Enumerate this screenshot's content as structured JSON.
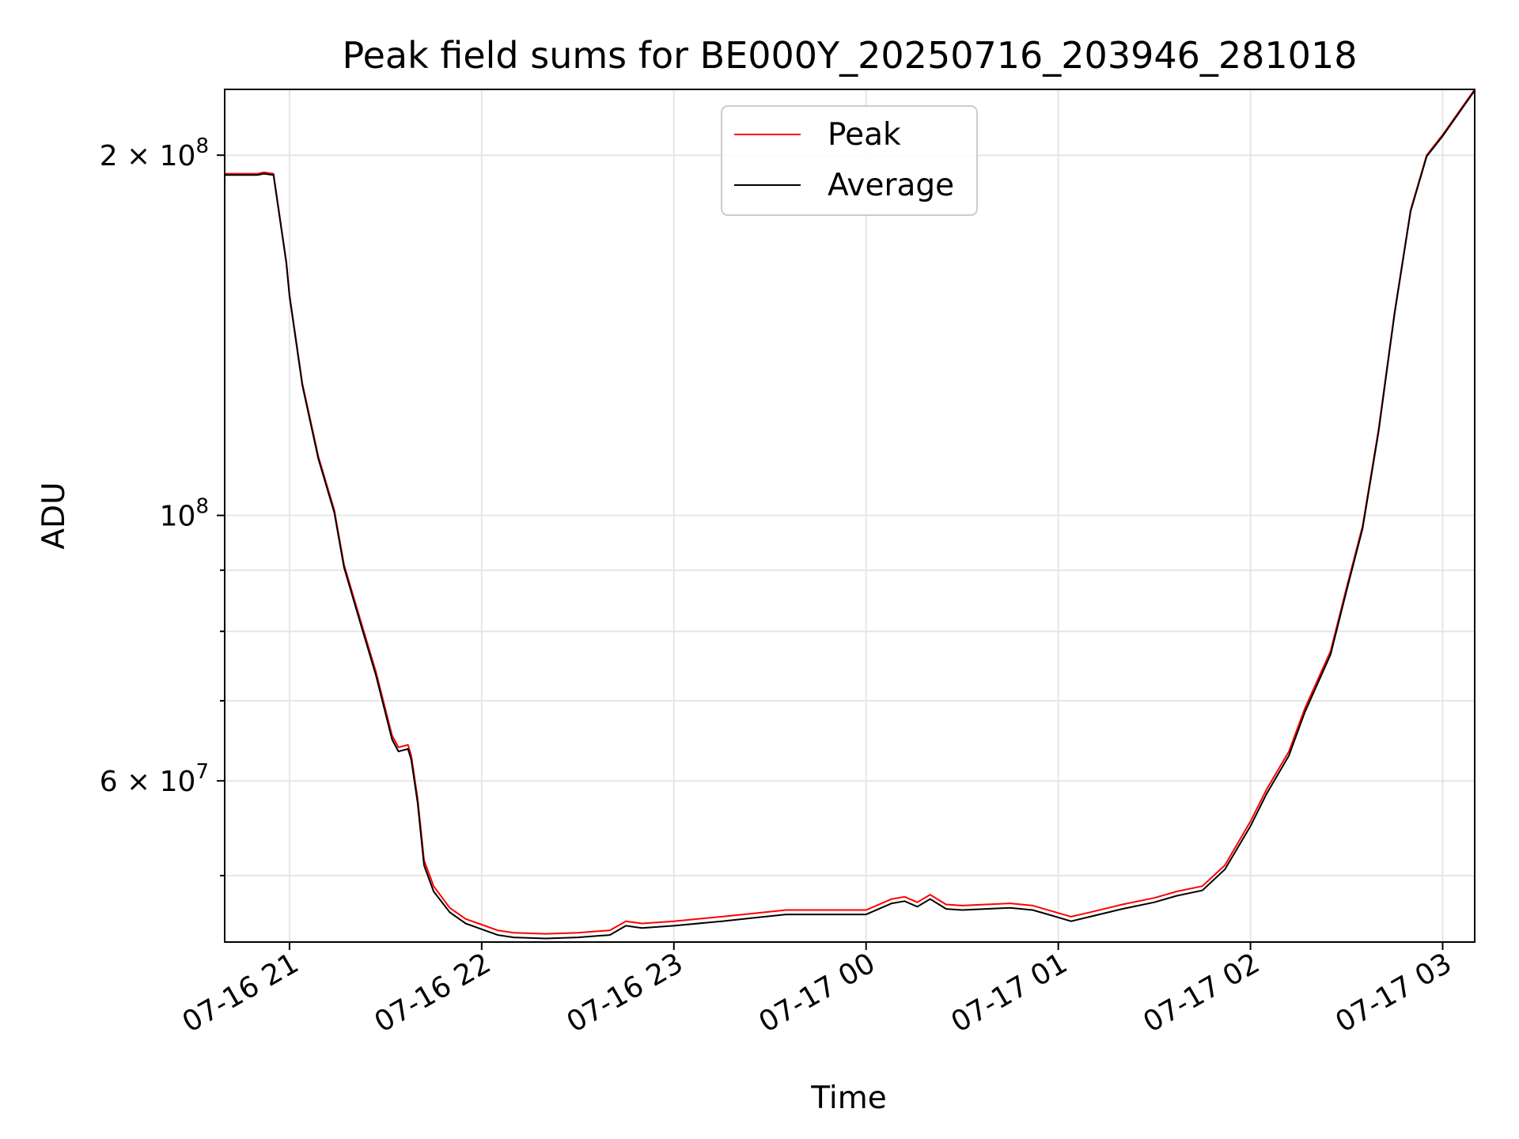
{
  "chart_data": {
    "type": "line",
    "title": "Peak field sums for BE000Y_20250716_203946_281018",
    "xlabel": "Time",
    "ylabel": "ADU",
    "y_scale": "log",
    "ylim": [
      44000000,
      227000000
    ],
    "xlim": [
      "2025-07-16 20:39:46",
      "2025-07-17 03:10:00"
    ],
    "grid": true,
    "legend_position": "top-center",
    "x_ticks": [
      {
        "t": "2025-07-16 21:00",
        "label": "07-16 21"
      },
      {
        "t": "2025-07-16 22:00",
        "label": "07-16 22"
      },
      {
        "t": "2025-07-16 23:00",
        "label": "07-16 23"
      },
      {
        "t": "2025-07-17 00:00",
        "label": "07-17 00"
      },
      {
        "t": "2025-07-17 01:00",
        "label": "07-17 01"
      },
      {
        "t": "2025-07-17 02:00",
        "label": "07-17 02"
      },
      {
        "t": "2025-07-17 03:00",
        "label": "07-17 03"
      }
    ],
    "y_ticks_major": [
      {
        "v": 200000000,
        "base": "2 × 10",
        "exp": "8"
      },
      {
        "v": 100000000,
        "base": "10",
        "exp": "8"
      },
      {
        "v": 60000000,
        "base": "6 × 10",
        "exp": "7"
      }
    ],
    "y_ticks_minor": [
      50000000,
      70000000,
      80000000,
      90000000
    ],
    "series": [
      {
        "name": "Peak",
        "color": "#ff0000",
        "x": [
          "2025-07-16 20:39:46",
          "2025-07-16 20:50",
          "2025-07-16 20:52",
          "2025-07-16 20:55",
          "2025-07-16 20:59",
          "2025-07-16 21:00",
          "2025-07-16 21:04",
          "2025-07-16 21:09",
          "2025-07-16 21:14",
          "2025-07-16 21:17",
          "2025-07-16 21:22",
          "2025-07-16 21:27",
          "2025-07-16 21:32",
          "2025-07-16 21:34",
          "2025-07-16 21:37",
          "2025-07-16 21:38",
          "2025-07-16 21:40",
          "2025-07-16 21:42",
          "2025-07-16 21:45",
          "2025-07-16 21:50",
          "2025-07-16 21:55",
          "2025-07-16 22:00",
          "2025-07-16 22:05",
          "2025-07-16 22:10",
          "2025-07-16 22:20",
          "2025-07-16 22:30",
          "2025-07-16 22:40",
          "2025-07-16 22:45",
          "2025-07-16 22:50",
          "2025-07-16 23:00",
          "2025-07-16 23:15",
          "2025-07-16 23:25",
          "2025-07-16 23:35",
          "2025-07-16 23:45",
          "2025-07-17 00:00",
          "2025-07-17 00:08",
          "2025-07-17 00:12",
          "2025-07-17 00:16",
          "2025-07-17 00:20",
          "2025-07-17 00:25",
          "2025-07-17 00:30",
          "2025-07-17 00:45",
          "2025-07-17 00:52",
          "2025-07-17 00:58",
          "2025-07-17 01:04",
          "2025-07-17 01:10",
          "2025-07-17 01:20",
          "2025-07-17 01:30",
          "2025-07-17 01:37",
          "2025-07-17 01:45",
          "2025-07-17 01:52",
          "2025-07-17 02:00",
          "2025-07-17 02:05",
          "2025-07-17 02:12",
          "2025-07-17 02:17",
          "2025-07-17 02:25",
          "2025-07-17 02:30",
          "2025-07-17 02:35",
          "2025-07-17 02:40",
          "2025-07-17 02:45",
          "2025-07-17 02:50",
          "2025-07-17 02:55",
          "2025-07-17 03:00",
          "2025-07-17 03:10"
        ],
        "y": [
          193000000,
          193000000,
          193500000,
          193000000,
          163000000,
          153000000,
          129000000,
          112000000,
          101000000,
          91000000,
          82000000,
          74000000,
          65500000,
          64000000,
          64300000,
          63000000,
          58000000,
          51500000,
          49000000,
          47000000,
          46000000,
          45500000,
          45000000,
          44800000,
          44700000,
          44800000,
          45000000,
          45800000,
          45600000,
          45800000,
          46200000,
          46500000,
          46800000,
          46800000,
          46800000,
          47800000,
          48000000,
          47500000,
          48200000,
          47300000,
          47200000,
          47400000,
          47200000,
          46700000,
          46200000,
          46600000,
          47300000,
          47900000,
          48500000,
          49000000,
          51000000,
          55500000,
          59000000,
          63500000,
          69000000,
          77000000,
          87000000,
          98000000,
          118000000,
          148000000,
          180000000,
          200000000,
          208000000,
          227000000
        ]
      },
      {
        "name": "Average",
        "color": "#000000",
        "x": [
          "2025-07-16 20:39:46",
          "2025-07-16 20:50",
          "2025-07-16 20:52",
          "2025-07-16 20:55",
          "2025-07-16 20:59",
          "2025-07-16 21:00",
          "2025-07-16 21:04",
          "2025-07-16 21:09",
          "2025-07-16 21:14",
          "2025-07-16 21:17",
          "2025-07-16 21:22",
          "2025-07-16 21:27",
          "2025-07-16 21:32",
          "2025-07-16 21:34",
          "2025-07-16 21:37",
          "2025-07-16 21:38",
          "2025-07-16 21:40",
          "2025-07-16 21:42",
          "2025-07-16 21:45",
          "2025-07-16 21:50",
          "2025-07-16 21:55",
          "2025-07-16 22:00",
          "2025-07-16 22:05",
          "2025-07-16 22:10",
          "2025-07-16 22:20",
          "2025-07-16 22:30",
          "2025-07-16 22:40",
          "2025-07-16 22:45",
          "2025-07-16 22:50",
          "2025-07-16 23:00",
          "2025-07-16 23:15",
          "2025-07-16 23:25",
          "2025-07-16 23:35",
          "2025-07-16 23:45",
          "2025-07-17 00:00",
          "2025-07-17 00:08",
          "2025-07-17 00:12",
          "2025-07-17 00:16",
          "2025-07-17 00:20",
          "2025-07-17 00:25",
          "2025-07-17 00:30",
          "2025-07-17 00:45",
          "2025-07-17 00:52",
          "2025-07-17 00:58",
          "2025-07-17 01:04",
          "2025-07-17 01:10",
          "2025-07-17 01:20",
          "2025-07-17 01:30",
          "2025-07-17 01:37",
          "2025-07-17 01:45",
          "2025-07-17 01:52",
          "2025-07-17 02:00",
          "2025-07-17 02:05",
          "2025-07-17 02:12",
          "2025-07-17 02:17",
          "2025-07-17 02:25",
          "2025-07-17 02:30",
          "2025-07-17 02:35",
          "2025-07-17 02:40",
          "2025-07-17 02:45",
          "2025-07-17 02:50",
          "2025-07-17 02:55",
          "2025-07-17 03:00",
          "2025-07-17 03:10"
        ],
        "y": [
          192500000,
          192500000,
          193000000,
          192500000,
          162500000,
          152500000,
          128500000,
          111500000,
          100500000,
          90500000,
          81500000,
          73500000,
          65000000,
          63500000,
          63800000,
          62500000,
          57500000,
          51000000,
          48500000,
          46600000,
          45600000,
          45100000,
          44600000,
          44400000,
          44300000,
          44400000,
          44600000,
          45400000,
          45200000,
          45400000,
          45800000,
          46100000,
          46400000,
          46400000,
          46400000,
          47400000,
          47600000,
          47100000,
          47800000,
          46900000,
          46800000,
          47000000,
          46800000,
          46300000,
          45800000,
          46200000,
          46900000,
          47500000,
          48100000,
          48600000,
          50600000,
          55000000,
          58500000,
          63000000,
          68500000,
          76500000,
          86500000,
          97500000,
          117500000,
          147500000,
          179500000,
          199500000,
          207500000,
          226500000
        ]
      }
    ]
  }
}
